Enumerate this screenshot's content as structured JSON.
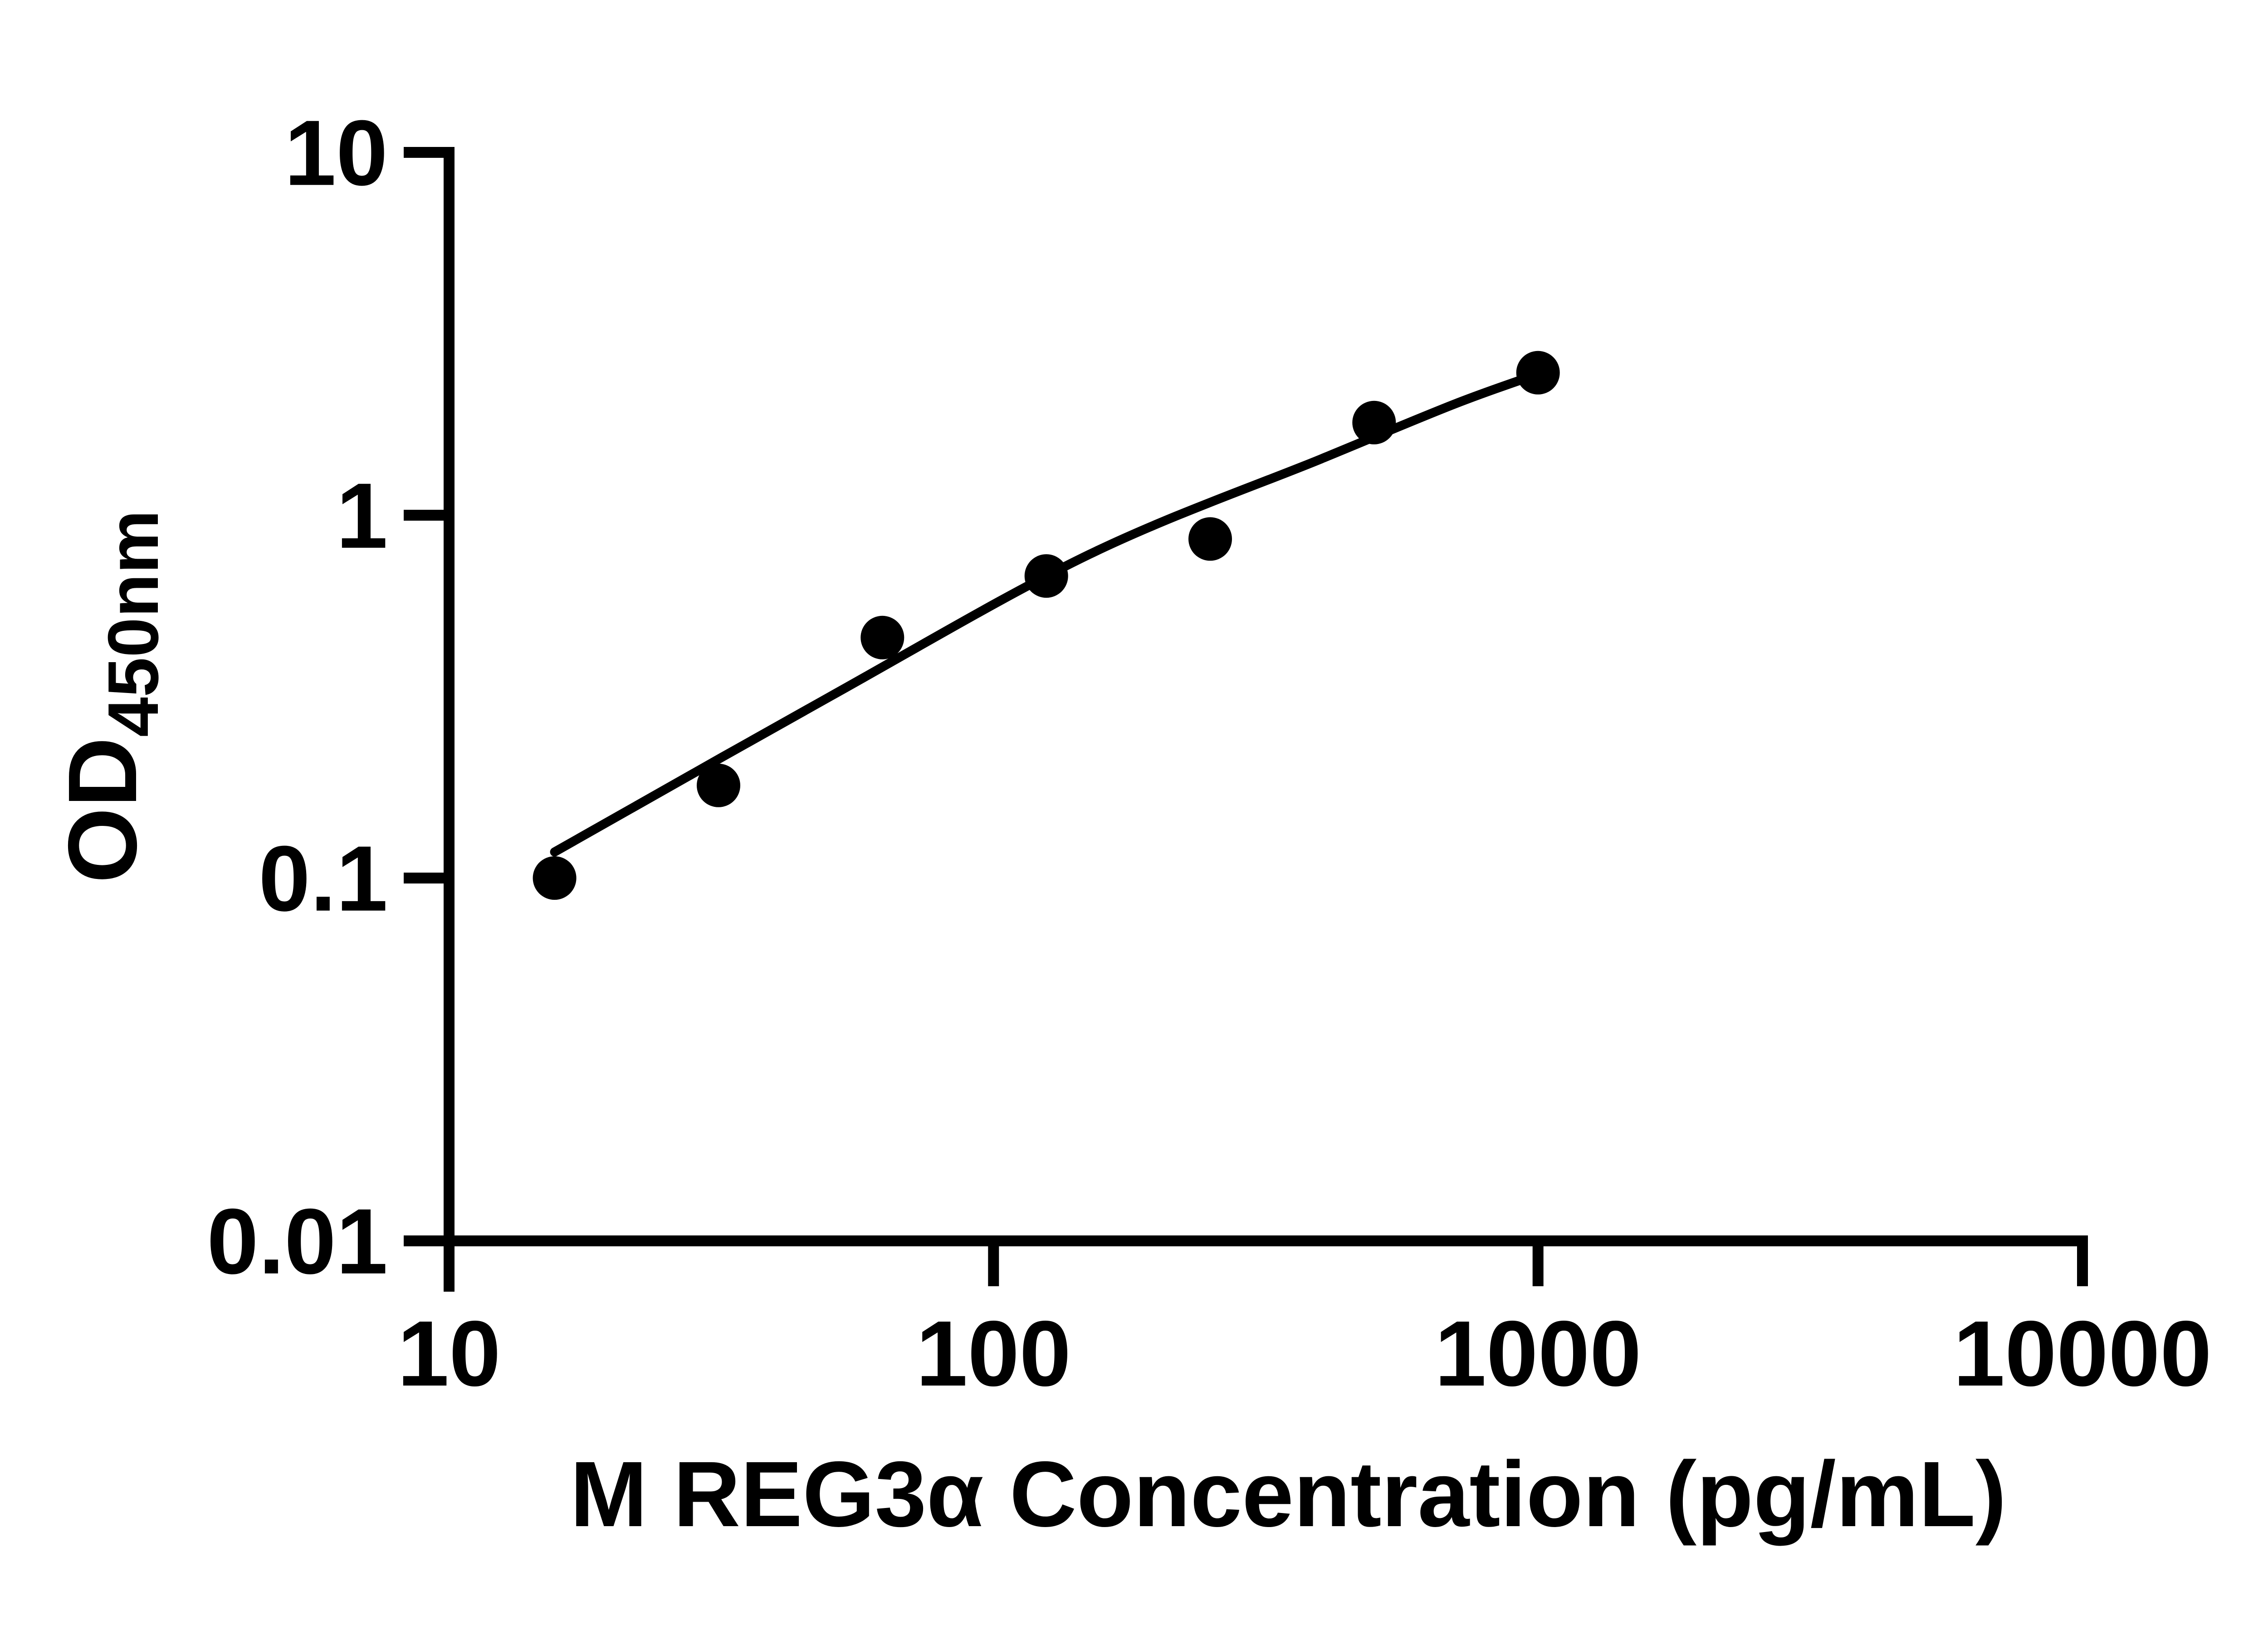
{
  "page": {
    "background": "#ffffff"
  },
  "chart_data": {
    "type": "scatter",
    "title": "",
    "xlabel": "M REG3α Concentration (pg/mL)",
    "ylabel": {
      "main": "OD",
      "sub": "450nm",
      "full": "OD450nm"
    },
    "log_x": true,
    "log_y": true,
    "xlim": [
      10,
      10000
    ],
    "ylim": [
      0.01,
      10
    ],
    "grid": false,
    "legend": "none",
    "x_ticks": [
      {
        "value": 10,
        "label": "10"
      },
      {
        "value": 100,
        "label": "100"
      },
      {
        "value": 1000,
        "label": "1000"
      },
      {
        "value": 10000,
        "label": "10000"
      }
    ],
    "y_ticks": [
      {
        "value": 10,
        "label": "10"
      },
      {
        "value": 1,
        "label": "1"
      },
      {
        "value": 0.1,
        "label": "0.1"
      },
      {
        "value": 0.01,
        "label": "0.01"
      }
    ],
    "series": [
      {
        "name": "standard-points",
        "marker": "filled-circle",
        "color": "#000000",
        "points": [
          {
            "x": 15.625,
            "y": 0.1
          },
          {
            "x": 31.25,
            "y": 0.18
          },
          {
            "x": 62.5,
            "y": 0.46
          },
          {
            "x": 125,
            "y": 0.68
          },
          {
            "x": 250,
            "y": 0.86
          },
          {
            "x": 500,
            "y": 1.8
          },
          {
            "x": 1000,
            "y": 2.47
          }
        ]
      }
    ],
    "fit_curve": {
      "name": "fitted-standard-curve",
      "color": "#000000",
      "points": [
        [
          15.625,
          0.118
        ],
        [
          50,
          0.316
        ],
        [
          150,
          0.78
        ],
        [
          400,
          1.43
        ],
        [
          700,
          2.02
        ],
        [
          1000,
          2.45
        ]
      ]
    },
    "styles": {
      "axis_color": "#000000",
      "marker_radius": 48,
      "axis_width": 24,
      "curve_width": 20,
      "tick_length": 100
    }
  }
}
